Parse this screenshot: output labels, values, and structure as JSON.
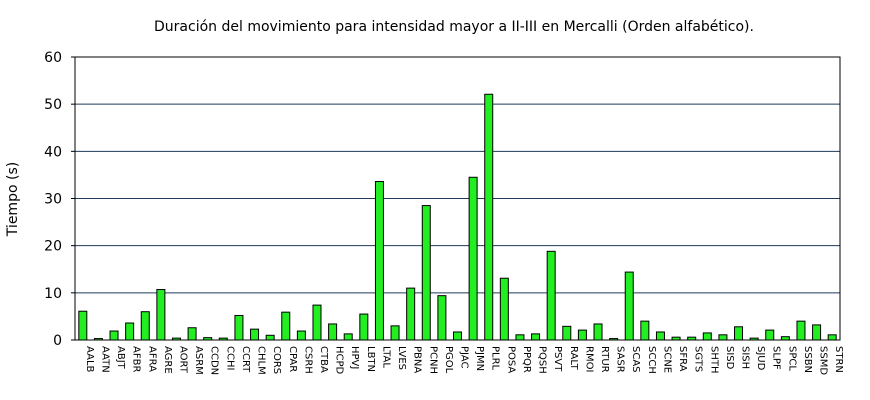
{
  "chart_data": {
    "type": "bar",
    "title": "Duración del movimiento para intensidad mayor a II-III en Mercalli (Orden alfabético).",
    "xlabel": "",
    "ylabel": "Tiempo (s)",
    "ylim": [
      0,
      60
    ],
    "yticks": [
      0,
      10,
      20,
      30,
      40,
      50,
      60
    ],
    "grid": "horizontal",
    "bar_color": "#22ee22",
    "categories": [
      "AALB",
      "AATN",
      "ABJT",
      "AFBR",
      "AFRA",
      "AGRE",
      "AORT",
      "ASRM",
      "CCDN",
      "CCHI",
      "CCRT",
      "CHLM",
      "CORS",
      "CPAR",
      "CSRH",
      "CTBA",
      "HCPD",
      "HPVJ",
      "LBTN",
      "LTAL",
      "LVES",
      "PBNA",
      "PCNH",
      "PGOL",
      "PJAC",
      "PJMN",
      "PLRL",
      "POSA",
      "PPQR",
      "PQSH",
      "PSVT",
      "RALT",
      "RMOI",
      "RTUR",
      "SASR",
      "SCAS",
      "SCCH",
      "SCNE",
      "SFRA",
      "SGTS",
      "SHTH",
      "SISD",
      "SISH",
      "SJUD",
      "SLPF",
      "SPCL",
      "SSBN",
      "SSMD",
      "STRN"
    ],
    "values": [
      6.1,
      0.3,
      1.9,
      3.6,
      6.0,
      10.7,
      0.4,
      2.6,
      0.5,
      0.4,
      5.2,
      2.3,
      1.0,
      5.9,
      1.9,
      7.4,
      3.4,
      1.3,
      5.5,
      33.6,
      3.0,
      11.0,
      28.5,
      9.4,
      1.7,
      34.5,
      52.1,
      13.1,
      1.1,
      1.3,
      18.8,
      2.9,
      2.1,
      3.4,
      0.3,
      14.4,
      4.0,
      1.7,
      0.6,
      0.6,
      1.5,
      1.1,
      2.8,
      0.4,
      2.1,
      0.7,
      4.0,
      3.2,
      1.1
    ]
  }
}
